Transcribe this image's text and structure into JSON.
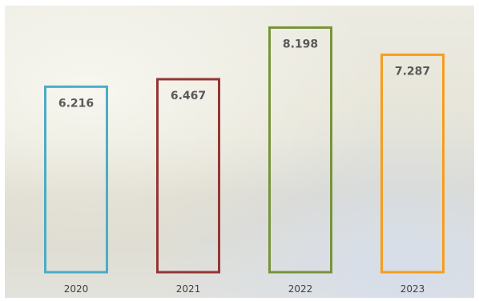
{
  "chart_data": {
    "type": "bar",
    "categories": [
      "2020",
      "2021",
      "2022",
      "2023"
    ],
    "values": [
      6.216,
      6.467,
      8.198,
      7.287
    ],
    "value_labels": [
      "6.216",
      "6.467",
      "8.198",
      "7.287"
    ],
    "title": "",
    "xlabel": "",
    "ylabel": "",
    "ylim": [
      0,
      8.8
    ],
    "grid": false,
    "legend": "none",
    "bar_style": "outline",
    "colors": [
      "#4bacc6",
      "#943634",
      "#77933c",
      "#f59d1d"
    ]
  }
}
